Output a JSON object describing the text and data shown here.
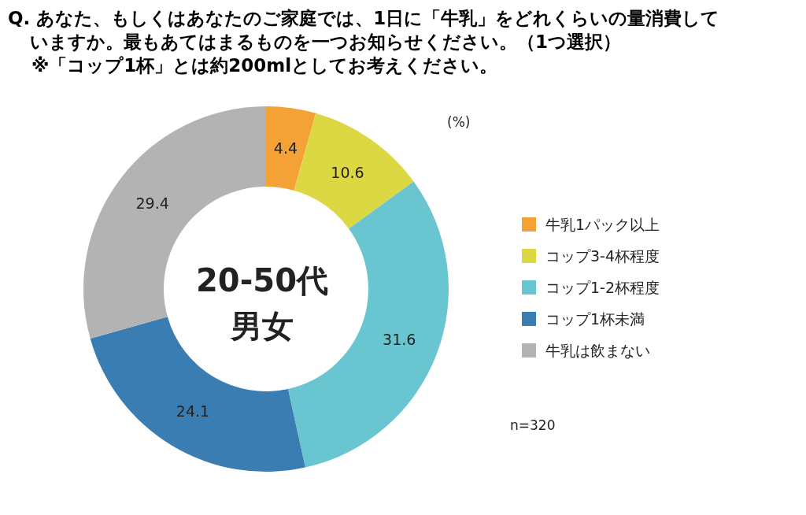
{
  "chart_data": {
    "type": "donut",
    "title": "Q. あなた、もしくはあなたのご家庭では、1日に「牛乳」をどれくらいの量消費していますか。最もあてはまるものを一つお知らせください。（1つ選択）",
    "subtitle": "※「コップ1杯」とは約200mlとしてお考えください。",
    "categories": [
      "牛乳1パック以上",
      "コップ3-4杯程度",
      "コップ1-2杯程度",
      "コップ1杯未満",
      "牛乳は飲まない"
    ],
    "values": [
      4.4,
      10.6,
      31.6,
      24.1,
      29.4
    ],
    "colors": [
      "#f4a235",
      "#dcd843",
      "#69c5d0",
      "#3a7db3",
      "#b3b3b3"
    ],
    "data_labels": true,
    "legend": "right",
    "annotations": [
      "20-50代",
      "男女",
      "(%)",
      "n=320"
    ]
  }
}
